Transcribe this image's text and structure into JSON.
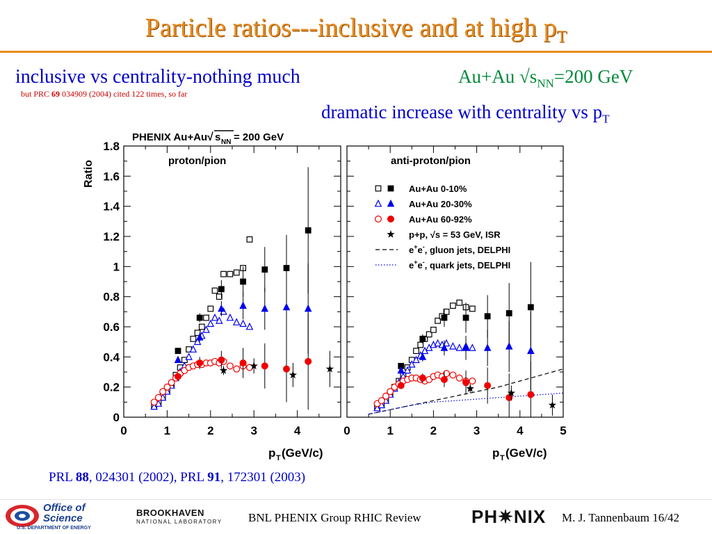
{
  "slide": {
    "title_main": "Particle ratios---inclusive and at high p",
    "title_sub": "T",
    "left_heading": "inclusive vs centrality-nothing much",
    "note_prefix": "but PRC ",
    "note_bold": "69",
    "note_suffix": " 034909 (2004) cited 122 times, so far",
    "right_heading_a": "Au+Au √s",
    "right_heading_sub": "NN",
    "right_heading_b": "=200 GeV",
    "right_heading2_main": "dramatic increase with centrality vs p",
    "right_heading2_sub": "T",
    "ref_a": "PRL ",
    "ref_a_bold": "88",
    "ref_a_rest": ", 024301 (2002),  PRL ",
    "ref_b_bold": "91",
    "ref_b_rest": ", 172301 (2003)",
    "footer_center": "BNL PHENIX Group  RHIC Review",
    "footer_author": "M. J. Tannenbaum  16/42",
    "logo_office_1": "Office of",
    "logo_office_2": "Science",
    "logo_office_3": "U.S. DEPARTMENT OF ENERGY",
    "logo_bnl_1": "BROOKHAVEN",
    "logo_bnl_2": "NATIONAL LABORATORY",
    "logo_phenix": "PH✷NIX"
  },
  "colors": {
    "title": "#e88a1c",
    "heading_blue": "#0000c8",
    "heading_green": "#008a3a",
    "note_red": "#cc0000",
    "series_black": "#000000",
    "series_blue": "#0000ee",
    "series_red": "#ee0000"
  },
  "chart_data": {
    "type": "scatter",
    "header": "PHENIX Au+Au",
    "header_sqrt": "s",
    "header_sub": "NN",
    "header_rest": " = 200 GeV",
    "ylabel": "Ratio",
    "xlabel_main": "p",
    "xlabel_sub": "T",
    "xlabel_rest": " (GeV/c)",
    "ylim": [
      0,
      1.8
    ],
    "xlim": [
      0,
      5
    ],
    "yticks": [
      "0",
      "0.2",
      "0.4",
      "0.6",
      "0.8",
      "1",
      "1.2",
      "1.4",
      "1.6",
      "1.8"
    ],
    "xticks_left": [
      "0",
      "1",
      "2",
      "3",
      "4"
    ],
    "xticks_right": [
      "0",
      "1",
      "2",
      "3",
      "4",
      "5"
    ],
    "legend": [
      {
        "label": "Au+Au 0-10%"
      },
      {
        "label": "Au+Au 20-30%"
      },
      {
        "label": "Au+Au 60-92%"
      },
      {
        "label": "p+p, √s = 53 GeV, ISR"
      },
      {
        "label_e": "e",
        "label_sup": "+",
        "label_e2": "e",
        "label_sup2": "-",
        "label_rest": ", gluon jets, DELPHI"
      },
      {
        "label_e": "e",
        "label_sup": "+",
        "label_e2": "e",
        "label_sup2": "-",
        "label_rest": ", quark jets, DELPHI"
      }
    ],
    "panels": [
      {
        "label": "proton/pion",
        "series": [
          {
            "marker": "square-open",
            "color": "#000000",
            "x": [
              0.7,
              0.8,
              0.9,
              1.0,
              1.1,
              1.2,
              1.3,
              1.4,
              1.5,
              1.6,
              1.7,
              1.8,
              1.9,
              2.0,
              2.1,
              2.2,
              2.3,
              2.45,
              2.6,
              2.75,
              2.9
            ],
            "y": [
              0.08,
              0.1,
              0.14,
              0.18,
              0.22,
              0.28,
              0.33,
              0.38,
              0.45,
              0.52,
              0.56,
              0.6,
              0.66,
              0.72,
              0.84,
              0.8,
              0.95,
              0.95,
              0.96,
              0.99,
              1.18
            ]
          },
          {
            "marker": "square-filled",
            "color": "#000000",
            "x": [
              1.25,
              1.75,
              2.25,
              2.75,
              3.25,
              3.75,
              4.25
            ],
            "y": [
              0.44,
              0.66,
              0.85,
              0.9,
              0.98,
              0.99,
              1.24
            ],
            "err": [
              0.02,
              0.03,
              0.06,
              0.1,
              0.15,
              0.22,
              0.42
            ]
          },
          {
            "marker": "triangle-open",
            "color": "#0000ee",
            "x": [
              0.7,
              0.8,
              0.9,
              1.0,
              1.1,
              1.2,
              1.3,
              1.4,
              1.5,
              1.6,
              1.7,
              1.8,
              1.9,
              2.0,
              2.1,
              2.2,
              2.3,
              2.45,
              2.6,
              2.75,
              2.9
            ],
            "y": [
              0.07,
              0.09,
              0.13,
              0.17,
              0.21,
              0.26,
              0.3,
              0.34,
              0.4,
              0.45,
              0.5,
              0.54,
              0.58,
              0.62,
              0.66,
              0.64,
              0.7,
              0.66,
              0.63,
              0.62,
              0.6
            ]
          },
          {
            "marker": "triangle-filled",
            "color": "#0000ee",
            "x": [
              1.25,
              1.75,
              2.25,
              2.75,
              3.25,
              3.75,
              4.25
            ],
            "y": [
              0.38,
              0.53,
              0.72,
              0.74,
              0.72,
              0.73,
              0.72
            ],
            "err": [
              0.02,
              0.03,
              0.05,
              0.09,
              0.14,
              0.2,
              0.3
            ]
          },
          {
            "marker": "circle-open",
            "color": "#ee0000",
            "x": [
              0.7,
              0.8,
              0.9,
              1.0,
              1.1,
              1.2,
              1.3,
              1.4,
              1.5,
              1.6,
              1.7,
              1.8,
              1.9,
              2.0,
              2.1,
              2.2,
              2.3,
              2.45,
              2.6,
              2.75,
              2.9
            ],
            "y": [
              0.1,
              0.13,
              0.17,
              0.2,
              0.23,
              0.26,
              0.29,
              0.31,
              0.33,
              0.34,
              0.35,
              0.35,
              0.36,
              0.36,
              0.37,
              0.36,
              0.37,
              0.34,
              0.32,
              0.34,
              0.33
            ]
          },
          {
            "marker": "circle-filled",
            "color": "#ee0000",
            "x": [
              1.25,
              1.75,
              2.25,
              2.75,
              3.25,
              3.75,
              4.25
            ],
            "y": [
              0.27,
              0.36,
              0.38,
              0.36,
              0.34,
              0.32,
              0.37
            ],
            "err": [
              0.02,
              0.04,
              0.06,
              0.1,
              0.15,
              0.22,
              0.32
            ]
          },
          {
            "marker": "star",
            "color": "#000000",
            "x": [
              2.3,
              3.0,
              3.9,
              4.75
            ],
            "y": [
              0.31,
              0.34,
              0.28,
              0.32
            ],
            "err": [
              0.03,
              0.05,
              0.08,
              0.12
            ]
          }
        ]
      },
      {
        "label": "anti-proton/pion",
        "series": [
          {
            "marker": "square-open",
            "color": "#000000",
            "x": [
              0.7,
              0.8,
              0.9,
              1.0,
              1.1,
              1.2,
              1.3,
              1.4,
              1.5,
              1.6,
              1.7,
              1.8,
              1.9,
              2.0,
              2.1,
              2.2,
              2.3,
              2.45,
              2.6,
              2.75,
              2.9
            ],
            "y": [
              0.07,
              0.09,
              0.12,
              0.16,
              0.2,
              0.24,
              0.28,
              0.33,
              0.38,
              0.44,
              0.48,
              0.52,
              0.55,
              0.58,
              0.64,
              0.67,
              0.7,
              0.74,
              0.76,
              0.73,
              0.72
            ]
          },
          {
            "marker": "square-filled",
            "color": "#000000",
            "x": [
              1.25,
              1.75,
              2.25,
              2.75,
              3.25,
              3.75,
              4.25
            ],
            "y": [
              0.34,
              0.52,
              0.66,
              0.66,
              0.67,
              0.69,
              0.73
            ],
            "err": [
              0.02,
              0.03,
              0.06,
              0.1,
              0.14,
              0.2,
              0.3
            ]
          },
          {
            "marker": "triangle-open",
            "color": "#0000ee",
            "x": [
              0.7,
              0.8,
              0.9,
              1.0,
              1.1,
              1.2,
              1.3,
              1.4,
              1.5,
              1.6,
              1.7,
              1.8,
              1.9,
              2.0,
              2.1,
              2.2,
              2.3,
              2.45,
              2.6,
              2.75,
              2.9
            ],
            "y": [
              0.06,
              0.08,
              0.11,
              0.15,
              0.19,
              0.23,
              0.27,
              0.31,
              0.35,
              0.38,
              0.41,
              0.44,
              0.46,
              0.48,
              0.49,
              0.48,
              0.49,
              0.47,
              0.46,
              0.47,
              0.46
            ]
          },
          {
            "marker": "triangle-filled",
            "color": "#0000ee",
            "x": [
              1.25,
              1.75,
              2.25,
              2.75,
              3.25,
              3.75,
              4.25
            ],
            "y": [
              0.31,
              0.4,
              0.46,
              0.46,
              0.46,
              0.47,
              0.44
            ],
            "err": [
              0.02,
              0.03,
              0.05,
              0.08,
              0.12,
              0.17,
              0.26
            ]
          },
          {
            "marker": "circle-open",
            "color": "#ee0000",
            "x": [
              0.7,
              0.8,
              0.9,
              1.0,
              1.1,
              1.2,
              1.3,
              1.4,
              1.5,
              1.6,
              1.7,
              1.8,
              1.9,
              2.0,
              2.1,
              2.2,
              2.3,
              2.45,
              2.6,
              2.75,
              2.9
            ],
            "y": [
              0.09,
              0.11,
              0.14,
              0.17,
              0.2,
              0.22,
              0.24,
              0.25,
              0.26,
              0.26,
              0.25,
              0.24,
              0.25,
              0.27,
              0.28,
              0.27,
              0.29,
              0.28,
              0.26,
              0.24,
              0.24
            ]
          },
          {
            "marker": "circle-filled",
            "color": "#ee0000",
            "x": [
              1.25,
              1.75,
              2.25,
              2.75,
              3.25,
              3.75,
              4.25
            ],
            "y": [
              0.21,
              0.26,
              0.25,
              0.23,
              0.21,
              0.13,
              0.15
            ],
            "err": [
              0.02,
              0.03,
              0.05,
              0.08,
              0.12,
              0.16,
              0.22
            ]
          },
          {
            "marker": "star",
            "color": "#000000",
            "x": [
              2.85,
              3.8,
              4.75
            ],
            "y": [
              0.19,
              0.16,
              0.08
            ],
            "err": [
              0.03,
              0.05,
              0.07
            ]
          }
        ],
        "curves": [
          {
            "style": "dashed",
            "color": "#000000",
            "x": [
              0.5,
              1.0,
              1.5,
              2.0,
              2.5,
              3.0,
              3.5,
              4.0,
              4.5,
              5.0
            ],
            "y": [
              0.02,
              0.05,
              0.08,
              0.11,
              0.14,
              0.17,
              0.2,
              0.24,
              0.28,
              0.32
            ]
          },
          {
            "style": "dotted",
            "color": "#0000ee",
            "x": [
              0.5,
              1.0,
              1.5,
              2.0,
              2.5,
              3.0,
              3.5,
              4.0,
              4.5,
              5.0
            ],
            "y": [
              0.02,
              0.05,
              0.08,
              0.1,
              0.11,
              0.12,
              0.13,
              0.14,
              0.15,
              0.16
            ]
          }
        ]
      }
    ]
  }
}
